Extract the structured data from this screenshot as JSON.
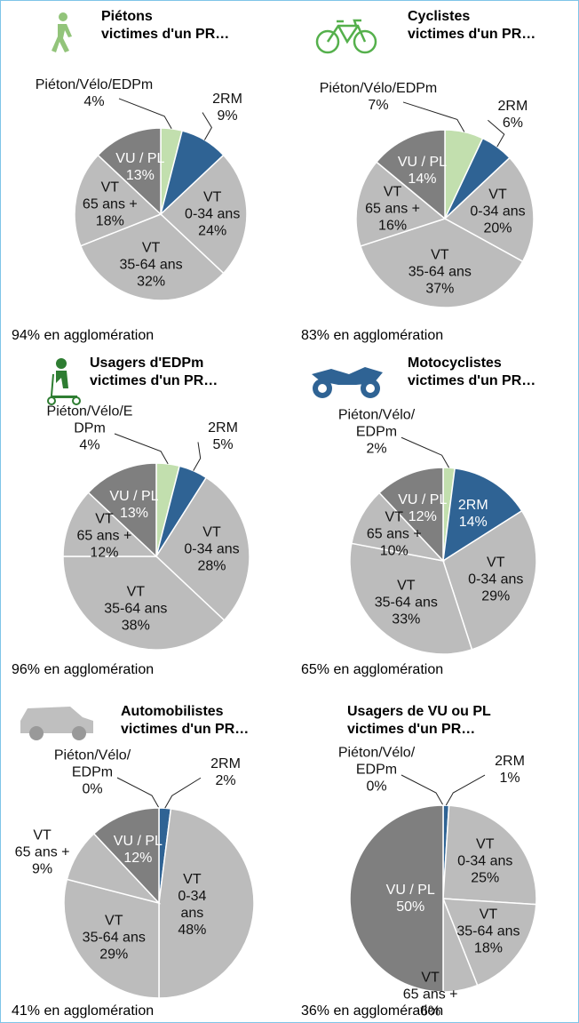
{
  "chart_data": [
    {
      "type": "pie",
      "title": [
        "Piétons",
        "victimes d'un PR…"
      ],
      "note": "94% en agglomération",
      "categories": [
        "Piéton/Vélo/EDPm",
        "2RM",
        "VT\n0-34 ans",
        "VT\n35-64 ans",
        "VT\n65 ans +",
        "VU / PL"
      ],
      "values": [
        4,
        9,
        24,
        32,
        18,
        13
      ],
      "value_labels": [
        "4%",
        "9%",
        "24%",
        "32%",
        "18%",
        "13%"
      ],
      "colors": [
        "#c2dfae",
        "#2f6394",
        "#bcbcbc",
        "#bcbcbc",
        "#bcbcbc",
        "#7f7f7f"
      ]
    },
    {
      "type": "pie",
      "title": [
        "Cyclistes",
        "victimes d'un PR…"
      ],
      "note": "83% en agglomération",
      "categories": [
        "Piéton/Vélo/EDPm",
        "2RM",
        "VT\n0-34 ans",
        "VT\n35-64 ans",
        "VT\n65 ans +",
        "VU / PL"
      ],
      "values": [
        7,
        6,
        20,
        37,
        16,
        14
      ],
      "value_labels": [
        "7%",
        "6%",
        "20%",
        "37%",
        "16%",
        "14%"
      ],
      "colors": [
        "#c2dfae",
        "#2f6394",
        "#bcbcbc",
        "#bcbcbc",
        "#bcbcbc",
        "#7f7f7f"
      ]
    },
    {
      "type": "pie",
      "title": [
        "Usagers d'EDPm",
        "victimes d'un PR…"
      ],
      "note": "96% en agglomération",
      "categories": [
        "Piéton/Vélo/E\nDPm",
        "2RM",
        "VT\n0-34 ans",
        "VT\n35-64 ans",
        "VT\n65 ans +",
        "VU / PL"
      ],
      "values": [
        4,
        5,
        28,
        38,
        12,
        13
      ],
      "value_labels": [
        "4%",
        "5%",
        "28%",
        "38%",
        "12%",
        "13%"
      ],
      "colors": [
        "#c2dfae",
        "#2f6394",
        "#bcbcbc",
        "#bcbcbc",
        "#bcbcbc",
        "#7f7f7f"
      ]
    },
    {
      "type": "pie",
      "title": [
        "Motocyclistes",
        "victimes d'un PR…"
      ],
      "note": "65% en agglomération",
      "categories": [
        "Piéton/Vélo/\nEDPm",
        "2RM",
        "VT\n0-34 ans",
        "VT\n35-64 ans",
        "VT\n65 ans +",
        "VU / PL"
      ],
      "values": [
        2,
        14,
        29,
        33,
        10,
        12
      ],
      "value_labels": [
        "2%",
        "14%",
        "29%",
        "33%",
        "10%",
        "12%"
      ],
      "colors": [
        "#c2dfae",
        "#2f6394",
        "#bcbcbc",
        "#bcbcbc",
        "#bcbcbc",
        "#7f7f7f"
      ]
    },
    {
      "type": "pie",
      "title": [
        "Automobilistes",
        "victimes d'un PR…"
      ],
      "note": "41% en agglomération",
      "categories": [
        "Piéton/Vélo/\nEDPm",
        "2RM",
        "VT\n0-34\nans",
        "VT\n35-64 ans",
        "VT\n65 ans +",
        "VU / PL"
      ],
      "values": [
        0,
        2,
        48,
        29,
        9,
        12
      ],
      "value_labels": [
        "0%",
        "2%",
        "48%",
        "29%",
        "9%",
        "12%"
      ],
      "colors": [
        "#c2dfae",
        "#2f6394",
        "#bcbcbc",
        "#bcbcbc",
        "#bcbcbc",
        "#7f7f7f"
      ]
    },
    {
      "type": "pie",
      "title": [
        "Usagers de VU ou PL",
        "victimes d'un PR…"
      ],
      "note": "36% en agglomération",
      "categories": [
        "Piéton/Vélo/\nEDPm",
        "2RM",
        "VT\n0-34 ans",
        "VT\n35-64 ans",
        "VT\n65 ans +",
        "VU / PL"
      ],
      "values": [
        0,
        1,
        25,
        18,
        6,
        50
      ],
      "value_labels": [
        "0%",
        "1%",
        "25%",
        "18%",
        "6%",
        "50%"
      ],
      "colors": [
        "#c2dfae",
        "#2f6394",
        "#bcbcbc",
        "#bcbcbc",
        "#bcbcbc",
        "#7f7f7f"
      ]
    }
  ]
}
